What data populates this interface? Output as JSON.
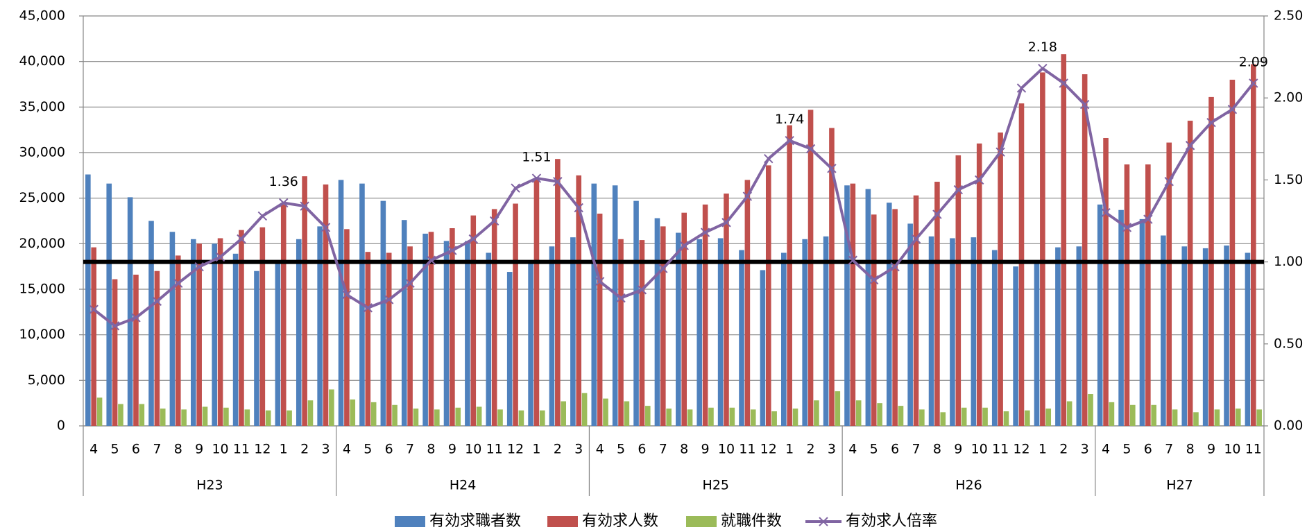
{
  "chart_data": {
    "type": "bar_line",
    "category_groups": [
      {
        "name": "H23",
        "categories": [
          "4",
          "5",
          "6",
          "7",
          "8",
          "9",
          "10",
          "11",
          "12",
          "1",
          "2",
          "3"
        ]
      },
      {
        "name": "H24",
        "categories": [
          "4",
          "5",
          "6",
          "7",
          "8",
          "9",
          "10",
          "11",
          "12",
          "1",
          "2",
          "3"
        ]
      },
      {
        "name": "H25",
        "categories": [
          "4",
          "5",
          "6",
          "7",
          "8",
          "9",
          "10",
          "11",
          "12",
          "1",
          "2",
          "3"
        ]
      },
      {
        "name": "H26",
        "categories": [
          "4",
          "5",
          "6",
          "7",
          "8",
          "9",
          "10",
          "11",
          "12",
          "1",
          "2",
          "3"
        ]
      },
      {
        "name": "H27",
        "categories": [
          "4",
          "5",
          "6",
          "7",
          "8",
          "9",
          "10",
          "11"
        ]
      }
    ],
    "series": [
      {
        "name": "有効求職者数",
        "type": "bar",
        "color": "#4f81bd",
        "values": [
          27600,
          26600,
          25100,
          22500,
          21300,
          20500,
          20000,
          18900,
          17000,
          18200,
          20500,
          21900,
          27000,
          26600,
          24700,
          22600,
          21100,
          20300,
          20300,
          19000,
          16900,
          18000,
          19700,
          20700,
          26600,
          26400,
          24700,
          22800,
          21200,
          20500,
          20600,
          19300,
          17100,
          19000,
          20500,
          20800,
          26400,
          26000,
          24500,
          22200,
          20800,
          20600,
          20700,
          19300,
          17500,
          18100,
          19600,
          19700,
          24300,
          23700,
          22700,
          20900,
          19700,
          19500,
          19800,
          19000
        ]
      },
      {
        "name": "有効求人数",
        "type": "bar",
        "color": "#c0504d",
        "values": [
          19600,
          16100,
          16600,
          17000,
          18700,
          20000,
          20600,
          21500,
          21800,
          24300,
          27400,
          26500,
          21600,
          19100,
          19000,
          19700,
          21300,
          21700,
          23100,
          23800,
          24400,
          27100,
          29300,
          27500,
          23300,
          20500,
          20400,
          21900,
          23400,
          24300,
          25500,
          27000,
          28600,
          33000,
          34700,
          32700,
          26600,
          23200,
          23800,
          25300,
          26800,
          29700,
          31000,
          32200,
          35400,
          38800,
          40800,
          38600,
          31600,
          28700,
          28700,
          31100,
          33500,
          36100,
          38000,
          39700
        ]
      },
      {
        "name": "就職件数",
        "type": "bar",
        "color": "#9bbb59",
        "values": [
          3100,
          2400,
          2400,
          1900,
          1800,
          2100,
          2000,
          1800,
          1700,
          1700,
          2800,
          4000,
          2900,
          2600,
          2300,
          1900,
          1800,
          2000,
          2100,
          1800,
          1700,
          1700,
          2700,
          3600,
          3000,
          2700,
          2200,
          1900,
          1800,
          2000,
          2000,
          1800,
          1600,
          1900,
          2800,
          3800,
          2800,
          2500,
          2200,
          1800,
          1500,
          2000,
          2000,
          1600,
          1700,
          1900,
          2700,
          3500,
          2600,
          2300,
          2300,
          1800,
          1500,
          1800,
          1900,
          1800
        ]
      },
      {
        "name": "有効求人倍率",
        "type": "line",
        "axis": "y2",
        "color": "#8064a2",
        "values": [
          0.71,
          0.61,
          0.66,
          0.76,
          0.87,
          0.97,
          1.03,
          1.14,
          1.28,
          1.36,
          1.34,
          1.21,
          0.8,
          0.72,
          0.77,
          0.87,
          1.01,
          1.07,
          1.14,
          1.25,
          1.45,
          1.51,
          1.49,
          1.33,
          0.88,
          0.78,
          0.83,
          0.96,
          1.1,
          1.18,
          1.24,
          1.4,
          1.63,
          1.74,
          1.69,
          1.57,
          1.01,
          0.89,
          0.97,
          1.14,
          1.29,
          1.44,
          1.5,
          1.67,
          2.06,
          2.18,
          2.09,
          1.96,
          1.3,
          1.21,
          1.26,
          1.49,
          1.71,
          1.85,
          1.93,
          2.09
        ],
        "value_labels": [
          null,
          null,
          null,
          null,
          null,
          null,
          null,
          null,
          null,
          "1.36",
          null,
          null,
          null,
          null,
          null,
          null,
          null,
          null,
          null,
          null,
          null,
          "1.51",
          null,
          null,
          null,
          null,
          null,
          null,
          null,
          null,
          null,
          null,
          null,
          "1.74",
          null,
          null,
          null,
          null,
          null,
          null,
          null,
          null,
          null,
          null,
          null,
          "2.18",
          null,
          null,
          null,
          null,
          null,
          null,
          null,
          null,
          null,
          "2.09"
        ]
      }
    ],
    "ylim": [
      0,
      45000
    ],
    "yticks": [
      {
        "value": 0,
        "label": "0"
      },
      {
        "value": 5000,
        "label": "5,000"
      },
      {
        "value": 10000,
        "label": "10,000"
      },
      {
        "value": 15000,
        "label": "15,000"
      },
      {
        "value": 20000,
        "label": "20,000"
      },
      {
        "value": 25000,
        "label": "25,000"
      },
      {
        "value": 30000,
        "label": "30,000"
      },
      {
        "value": 35000,
        "label": "35,000"
      },
      {
        "value": 40000,
        "label": "40,000"
      },
      {
        "value": 45000,
        "label": "45,000"
      }
    ],
    "y2lim": [
      0,
      2.5
    ],
    "y2ticks": [
      {
        "value": 0,
        "label": "0.00"
      },
      {
        "value": 0.5,
        "label": "0.50"
      },
      {
        "value": 1,
        "label": "1.00"
      },
      {
        "value": 1.5,
        "label": "1.50"
      },
      {
        "value": 2,
        "label": "2.00"
      },
      {
        "value": 2.5,
        "label": "2.50"
      }
    ],
    "y2_reference": 1,
    "grid": true,
    "legend": "bottom"
  }
}
